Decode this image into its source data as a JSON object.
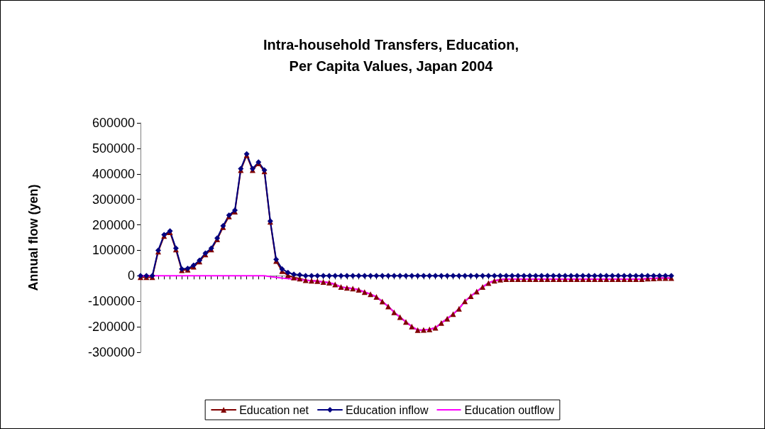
{
  "chart_data": {
    "type": "line",
    "title": "Intra-household Transfers, Education,\nPer Capita Values, Japan 2004",
    "ylabel": "Annual flow (yen)",
    "categories": [
      null,
      null,
      null,
      null,
      null,
      null,
      null,
      null,
      null,
      null,
      null,
      null,
      null,
      null,
      null,
      null,
      null,
      null,
      null,
      null,
      null,
      null,
      null,
      null,
      null,
      null,
      null,
      null,
      null,
      null,
      null,
      null,
      null,
      null,
      null,
      null,
      null,
      null,
      null,
      null,
      null,
      null,
      null,
      null,
      null,
      null,
      null,
      null,
      null,
      null,
      null,
      null,
      null,
      null,
      null,
      null,
      null,
      null,
      null,
      null,
      null,
      null,
      null,
      null,
      null,
      null,
      null,
      null,
      null,
      null,
      null,
      null,
      null,
      null,
      null,
      null,
      null,
      null,
      null,
      null,
      null,
      null,
      null,
      null,
      null,
      null,
      null,
      null,
      null,
      null,
      null
    ],
    "series": [
      {
        "name": "Education net",
        "color": "#800000",
        "marker": "triangle",
        "values": [
          -5000,
          -5000,
          -5000,
          95000,
          156000,
          171000,
          103000,
          22000,
          24000,
          36000,
          56000,
          84000,
          103000,
          143000,
          191000,
          233000,
          252000,
          415000,
          473000,
          415000,
          441000,
          410000,
          212000,
          58000,
          18000,
          2000,
          -7000,
          -11000,
          -17000,
          -19000,
          -21000,
          -24000,
          -27000,
          -34000,
          -44000,
          -47000,
          -50000,
          -55000,
          -64000,
          -72000,
          -83000,
          -101000,
          -120000,
          -143000,
          -162000,
          -181000,
          -199000,
          -213000,
          -212000,
          -210000,
          -204000,
          -185000,
          -168000,
          -150000,
          -129000,
          -100000,
          -80000,
          -62000,
          -44000,
          -28000,
          -19000,
          -15000,
          -13000,
          -13000,
          -13000,
          -13000,
          -13000,
          -13000,
          -13000,
          -13000,
          -13000,
          -13000,
          -13000,
          -13000,
          -13000,
          -13000,
          -13000,
          -13000,
          -13000,
          -13000,
          -13000,
          -13000,
          -13000,
          -13000,
          -13000,
          -13000,
          -11000,
          -10000,
          -9000,
          -9000,
          -9000
        ]
      },
      {
        "name": "Education inflow",
        "color": "#000080",
        "marker": "diamond",
        "values": [
          0,
          0,
          0,
          100000,
          161000,
          176000,
          108000,
          27000,
          29000,
          41000,
          61000,
          89000,
          108000,
          148000,
          196000,
          238000,
          257000,
          420000,
          478000,
          420000,
          446000,
          415000,
          215000,
          64000,
          27000,
          13000,
          6000,
          4000,
          0,
          0,
          0,
          0,
          0,
          0,
          0,
          0,
          0,
          0,
          0,
          0,
          0,
          0,
          0,
          0,
          0,
          0,
          0,
          0,
          0,
          0,
          0,
          0,
          0,
          0,
          0,
          0,
          0,
          0,
          0,
          0,
          0,
          0,
          0,
          0,
          0,
          0,
          0,
          0,
          0,
          0,
          0,
          0,
          0,
          0,
          0,
          0,
          0,
          0,
          0,
          0,
          0,
          0,
          0,
          0,
          0,
          0,
          0,
          0,
          0,
          0,
          0
        ]
      },
      {
        "name": "Education outflow",
        "color": "#ff00ff",
        "marker": "none",
        "values": [
          0,
          0,
          0,
          0,
          0,
          0,
          0,
          0,
          0,
          0,
          0,
          0,
          0,
          0,
          0,
          0,
          0,
          0,
          0,
          0,
          0,
          0,
          -3000,
          -6000,
          -9000,
          -11000,
          -13000,
          -15000,
          -17000,
          -19000,
          -21000,
          -24000,
          -27000,
          -34000,
          -44000,
          -47000,
          -50000,
          -55000,
          -64000,
          -72000,
          -83000,
          -101000,
          -120000,
          -143000,
          -162000,
          -181000,
          -199000,
          -213000,
          -212000,
          -210000,
          -204000,
          -185000,
          -168000,
          -150000,
          -129000,
          -100000,
          -80000,
          -62000,
          -44000,
          -28000,
          -19000,
          -15000,
          -13000,
          -13000,
          -13000,
          -13000,
          -13000,
          -13000,
          -13000,
          -13000,
          -13000,
          -13000,
          -13000,
          -13000,
          -13000,
          -13000,
          -13000,
          -13000,
          -13000,
          -13000,
          -13000,
          -13000,
          -13000,
          -13000,
          -13000,
          -13000,
          -11000,
          -10000,
          -9000,
          -9000,
          -9000
        ]
      }
    ],
    "ylim": [
      -300000,
      600000
    ],
    "yticks": [
      -300000,
      -200000,
      -100000,
      0,
      100000,
      200000,
      300000,
      400000,
      500000,
      600000
    ],
    "legend": "bottom"
  }
}
